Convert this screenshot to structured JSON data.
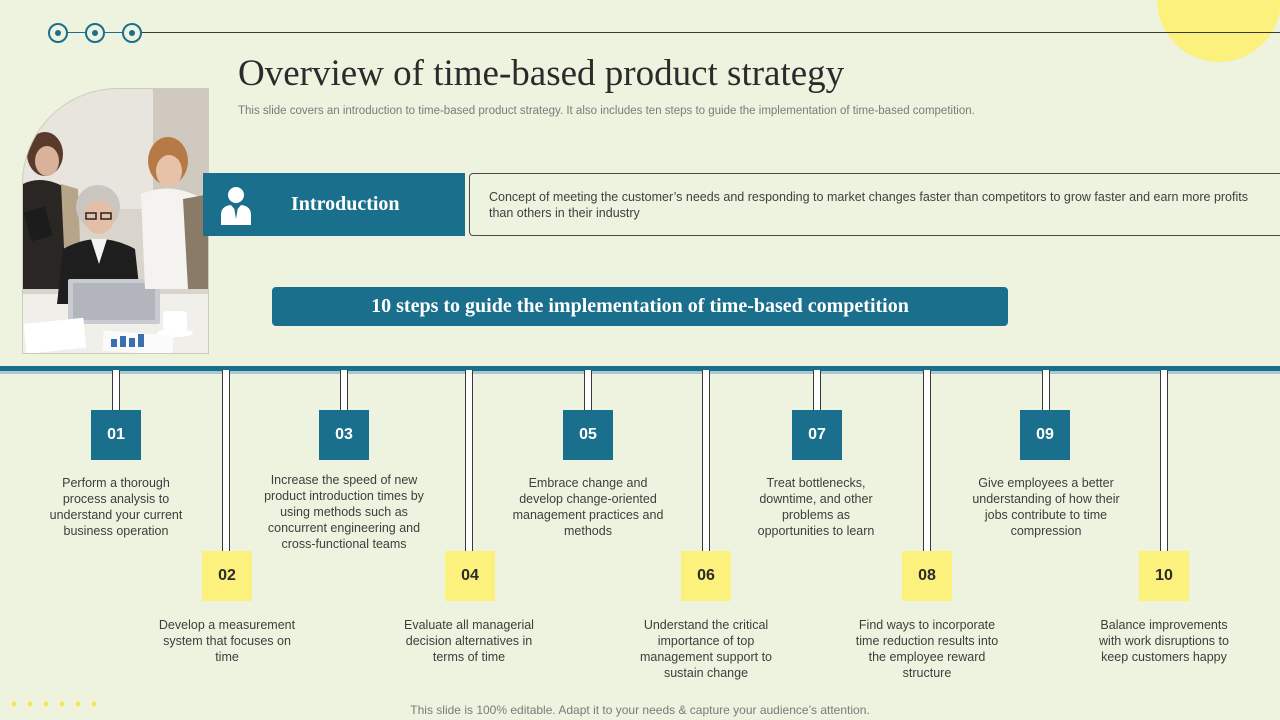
{
  "header": {
    "title": "Overview of time-based product strategy",
    "subtitle": "This slide covers an introduction to time-based product strategy. It also includes ten steps to guide the implementation of time-based competition."
  },
  "intro": {
    "label": "Introduction",
    "icon": "person-icon",
    "description": "Concept of meeting the customer’s needs and responding to market changes faster than competitors to grow faster and earn more profits than others in their industry"
  },
  "steps_banner": "10 steps to guide the implementation of time-based competition",
  "steps": [
    {
      "num": "01",
      "text": "Perform a thorough process analysis to understand your current business operation"
    },
    {
      "num": "02",
      "text": "Develop a measurement system that focuses on time"
    },
    {
      "num": "03",
      "text": "Increase the speed of new product introduction times by using methods such as concurrent engineering and cross-functional teams"
    },
    {
      "num": "04",
      "text": "Evaluate all managerial decision alternatives in terms of time"
    },
    {
      "num": "05",
      "text": "Embrace change and develop change-oriented management practices and methods"
    },
    {
      "num": "06",
      "text": "Understand the critical importance of top management support to sustain change"
    },
    {
      "num": "07",
      "text": "Treat bottlenecks, downtime, and other problems as opportunities to learn"
    },
    {
      "num": "08",
      "text": "Find ways to incorporate time reduction results into the employee reward structure"
    },
    {
      "num": "09",
      "text": "Give employees a better understanding of how their jobs contribute to time compression"
    },
    {
      "num": "10",
      "text": "Balance improvements with work disruptions to keep customers happy"
    }
  ],
  "footer": "This slide is 100% editable. Adapt it to your needs & capture your audience’s attention.",
  "colors": {
    "background": "#edf3de",
    "accent_blue": "#1a6f8c",
    "accent_yellow": "#fdf17e"
  }
}
